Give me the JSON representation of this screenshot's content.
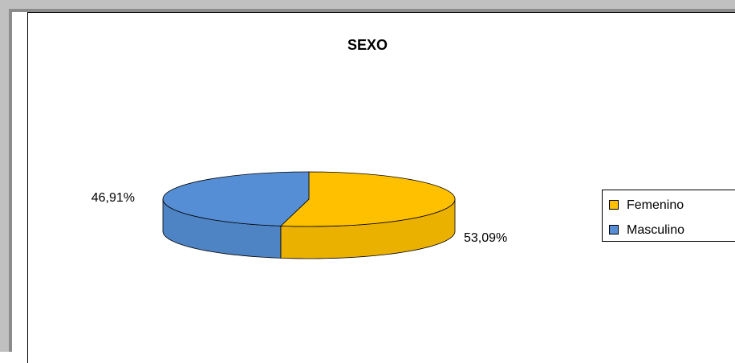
{
  "chart_data": {
    "type": "pie",
    "title": "SEXO",
    "categories": [
      "Femenino",
      "Masculino"
    ],
    "values": [
      53.09,
      46.91
    ],
    "data_labels": [
      "53,09%",
      "46,91%"
    ],
    "colors": [
      "#FFC000",
      "#558ED5"
    ],
    "legend_position": "right",
    "three_d": true
  }
}
